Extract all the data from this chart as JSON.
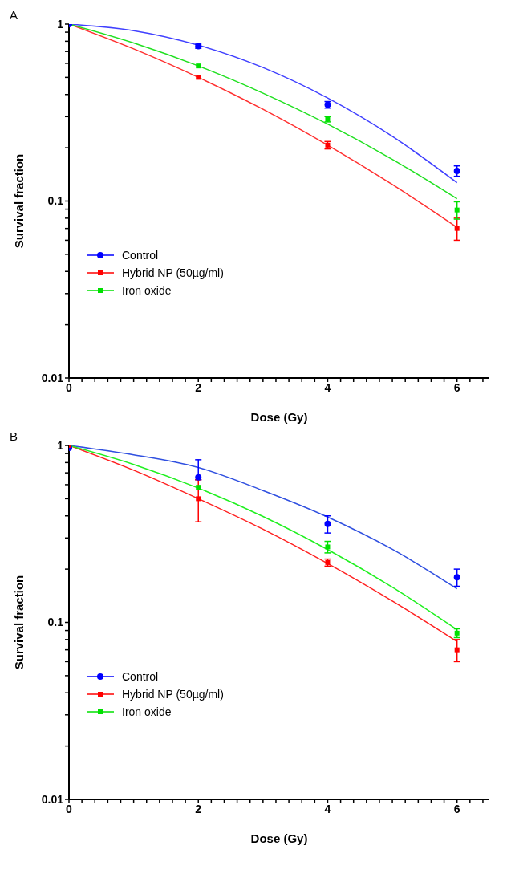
{
  "chart_data": [
    {
      "type": "scatter",
      "title": "A",
      "xlabel": "Dose (Gy)",
      "ylabel": "Survival fraction",
      "log": "y",
      "legend": "bottom left",
      "xlim": [
        0,
        6.5
      ],
      "xticks": [
        0,
        {
          "value": 0.2,
          "label": null
        },
        {
          "value": 0.4,
          "label": null
        },
        {
          "value": 0.6,
          "label": null
        },
        {
          "value": 0.8,
          "label": null
        },
        {
          "value": 1,
          "label": null
        },
        {
          "value": 1.2,
          "label": null
        },
        {
          "value": 1.4,
          "label": null
        },
        {
          "value": 1.6,
          "label": null
        },
        {
          "value": 1.8,
          "label": null
        },
        2,
        {
          "value": 2.2,
          "label": null
        },
        {
          "value": 2.4,
          "label": null
        },
        {
          "value": 2.6,
          "label": null
        },
        {
          "value": 2.8,
          "label": null
        },
        {
          "value": 3,
          "label": null
        },
        {
          "value": 3.2,
          "label": null
        },
        {
          "value": 3.4,
          "label": null
        },
        {
          "value": 3.6,
          "label": null
        },
        {
          "value": 3.8,
          "label": null
        },
        4,
        {
          "value": 4.2,
          "label": null
        },
        {
          "value": 4.4,
          "label": null
        },
        {
          "value": 4.6,
          "label": null
        },
        {
          "value": 4.8,
          "label": null
        },
        {
          "value": 5,
          "label": null
        },
        {
          "value": 5.2,
          "label": null
        },
        {
          "value": 5.4,
          "label": null
        },
        {
          "value": 5.6,
          "label": null
        },
        {
          "value": 5.8,
          "label": null
        },
        6,
        {
          "value": 6.2,
          "label": null
        },
        {
          "value": 6.4,
          "label": null
        }
      ],
      "ylim": [
        0.01,
        1
      ],
      "yticks": [
        0.01,
        {
          "value": 0.02,
          "label": null
        },
        {
          "value": 0.03,
          "label": null
        },
        {
          "value": 0.04,
          "label": null
        },
        {
          "value": 0.05,
          "label": null
        },
        {
          "value": 0.06,
          "label": null
        },
        {
          "value": 0.07,
          "label": null
        },
        {
          "value": 0.08,
          "label": null
        },
        {
          "value": 0.09,
          "label": null
        },
        0.1,
        {
          "value": 0.2,
          "label": null
        },
        {
          "value": 0.3,
          "label": null
        },
        {
          "value": 0.4,
          "label": null
        },
        {
          "value": 0.5,
          "label": null
        },
        {
          "value": 0.6,
          "label": null
        },
        {
          "value": 0.7,
          "label": null
        },
        {
          "value": 0.8,
          "label": null
        },
        {
          "value": 0.9,
          "label": null
        },
        1
      ],
      "series": [
        {
          "type": "line",
          "color": "#4040ff",
          "marker": "none",
          "x": [
            0,
            1,
            2,
            3,
            4,
            5,
            6
          ],
          "values": [
            1,
            0.918,
            0.76,
            0.568,
            0.382,
            0.232,
            0.127
          ]
        },
        {
          "type": "line",
          "color": "#ff3030",
          "marker": "none",
          "x": [
            0,
            1,
            2,
            3,
            4,
            5,
            6
          ],
          "values": [
            1,
            0.724,
            0.5,
            0.33,
            0.207,
            0.124,
            0.071
          ]
        },
        {
          "type": "line",
          "color": "#20e020",
          "marker": "none",
          "x": [
            0,
            1,
            2,
            3,
            4,
            5,
            6
          ],
          "values": [
            1,
            0.782,
            0.58,
            0.407,
            0.272,
            0.172,
            0.103
          ]
        },
        {
          "name": "Control",
          "color": "#0000ff",
          "marker": "circle",
          "x": [
            0,
            2,
            4,
            6
          ],
          "values": [
            1,
            0.75,
            0.35,
            0.148
          ],
          "errors": [
            null,
            0.02,
            0.015,
            0.01
          ]
        },
        {
          "name": "Hybrid NP (50µg/ml)",
          "color": "#ff0000",
          "marker": "square",
          "x": [
            2,
            4,
            6
          ],
          "values": [
            0.5,
            0.207,
            0.07
          ],
          "errors": [
            null,
            0.01,
            0.01
          ]
        },
        {
          "name": "Iron oxide",
          "color": "#00e000",
          "marker": "square",
          "x": [
            2,
            4,
            6
          ],
          "values": [
            0.58,
            0.29,
            0.089
          ],
          "errors": [
            null,
            0.01,
            0.01
          ]
        }
      ]
    },
    {
      "type": "scatter",
      "title": "B",
      "xlabel": "Dose (Gy)",
      "ylabel": "Survival fraction",
      "log": "y",
      "legend": "bottom left",
      "xlim": [
        0,
        6.5
      ],
      "xticks": [
        0,
        {
          "value": 0.2,
          "label": null
        },
        {
          "value": 0.4,
          "label": null
        },
        {
          "value": 0.6,
          "label": null
        },
        {
          "value": 0.8,
          "label": null
        },
        {
          "value": 1,
          "label": null
        },
        {
          "value": 1.2,
          "label": null
        },
        {
          "value": 1.4,
          "label": null
        },
        {
          "value": 1.6,
          "label": null
        },
        {
          "value": 1.8,
          "label": null
        },
        2,
        {
          "value": 2.2,
          "label": null
        },
        {
          "value": 2.4,
          "label": null
        },
        {
          "value": 2.6,
          "label": null
        },
        {
          "value": 2.8,
          "label": null
        },
        {
          "value": 3,
          "label": null
        },
        {
          "value": 3.2,
          "label": null
        },
        {
          "value": 3.4,
          "label": null
        },
        {
          "value": 3.6,
          "label": null
        },
        {
          "value": 3.8,
          "label": null
        },
        4,
        {
          "value": 4.2,
          "label": null
        },
        {
          "value": 4.4,
          "label": null
        },
        {
          "value": 4.6,
          "label": null
        },
        {
          "value": 4.8,
          "label": null
        },
        {
          "value": 5,
          "label": null
        },
        {
          "value": 5.2,
          "label": null
        },
        {
          "value": 5.4,
          "label": null
        },
        {
          "value": 5.6,
          "label": null
        },
        {
          "value": 5.8,
          "label": null
        },
        6,
        {
          "value": 6.2,
          "label": null
        },
        {
          "value": 6.4,
          "label": null
        }
      ],
      "ylim": [
        0.01,
        1
      ],
      "yticks": [
        0.01,
        {
          "value": 0.02,
          "label": null
        },
        {
          "value": 0.03,
          "label": null
        },
        {
          "value": 0.04,
          "label": null
        },
        {
          "value": 0.05,
          "label": null
        },
        {
          "value": 0.06,
          "label": null
        },
        {
          "value": 0.07,
          "label": null
        },
        {
          "value": 0.08,
          "label": null
        },
        {
          "value": 0.09,
          "label": null
        },
        0.1,
        {
          "value": 0.2,
          "label": null
        },
        {
          "value": 0.3,
          "label": null
        },
        {
          "value": 0.4,
          "label": null
        },
        {
          "value": 0.5,
          "label": null
        },
        {
          "value": 0.6,
          "label": null
        },
        {
          "value": 0.7,
          "label": null
        },
        {
          "value": 0.8,
          "label": null
        },
        {
          "value": 0.9,
          "label": null
        },
        1
      ],
      "series": [
        {
          "type": "line",
          "color": "#3050e0",
          "marker": "none",
          "x": [
            0,
            1,
            2,
            3,
            4,
            5,
            6
          ],
          "values": [
            1,
            0.885,
            0.75,
            0.556,
            0.394,
            0.259,
            0.155
          ]
        },
        {
          "type": "line",
          "color": "#ff2020",
          "marker": "none",
          "x": [
            0,
            1,
            2,
            3,
            4,
            5,
            6
          ],
          "values": [
            1,
            0.724,
            0.5,
            0.336,
            0.215,
            0.132,
            0.078
          ]
        },
        {
          "type": "line",
          "color": "#20f020",
          "marker": "none",
          "x": [
            0,
            1,
            2,
            3,
            4,
            5,
            6
          ],
          "values": [
            1,
            0.781,
            0.574,
            0.397,
            0.258,
            0.158,
            0.091
          ]
        },
        {
          "name": "Control",
          "color": "#0000ff",
          "marker": "circle",
          "x": [
            0,
            2,
            4,
            6
          ],
          "values": [
            0.97,
            0.66,
            0.36,
            0.18
          ],
          "errors": [
            null,
            [
              0.64,
              0.83
            ],
            0.04,
            0.02
          ]
        },
        {
          "name": "Hybrid NP (50µg/ml)",
          "color": "#ff0000",
          "marker": "square",
          "x": [
            0,
            2,
            4,
            6
          ],
          "values": [
            1,
            0.5,
            0.218,
            0.07
          ],
          "errors": [
            null,
            [
              0.37,
              0.64
            ],
            0.01,
            0.01
          ]
        },
        {
          "name": "Iron oxide",
          "color": "#00e000",
          "marker": "square",
          "x": [
            2,
            4,
            6
          ],
          "values": [
            0.58,
            0.267,
            0.087
          ],
          "errors": [
            null,
            0.02,
            0.005
          ]
        }
      ]
    }
  ]
}
